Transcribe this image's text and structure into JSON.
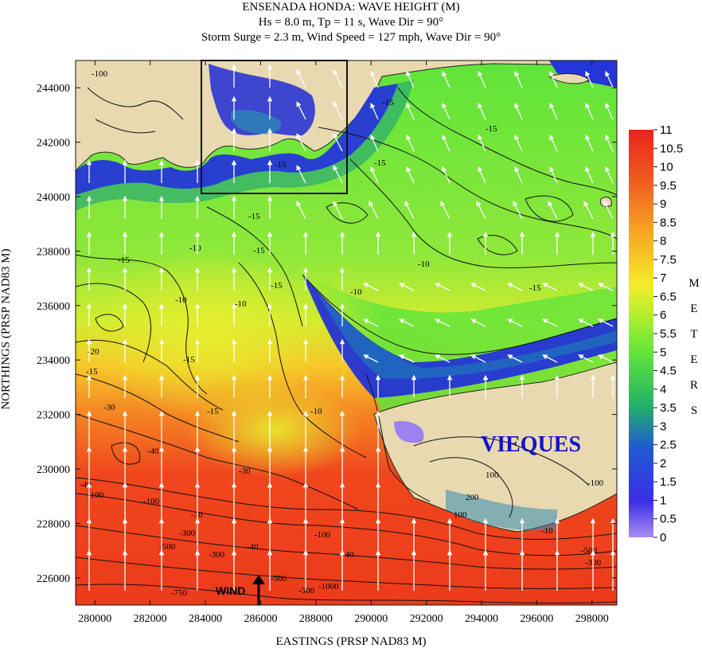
{
  "chart_data": {
    "type": "heatmap",
    "title_lines": [
      "ENSENADA HONDA: WAVE HEIGHT (M)",
      "Hs = 8.0 m, Tp = 11 s, Wave Dir = 90°",
      "Storm Surge = 2.3 m, Wind Speed = 127 mph, Wave Dir = 90°"
    ],
    "xlabel": "EASTINGS (PRSP NAD83 M)",
    "ylabel": "NORTHINGS (PRSP NAD83 M)",
    "xlim": [
      279300,
      298900
    ],
    "ylim": [
      225000,
      245000
    ],
    "x_ticks": [
      280000,
      282000,
      284000,
      286000,
      288000,
      290000,
      292000,
      294000,
      296000,
      298000
    ],
    "y_ticks": [
      226000,
      228000,
      230000,
      232000,
      234000,
      236000,
      238000,
      240000,
      242000,
      244000
    ],
    "colorbar": {
      "label": "METERS",
      "min": 0,
      "max": 11,
      "tick_labels": [
        "11",
        "10.5",
        "10",
        "9.5",
        "9",
        "8.5",
        "8",
        "7.5",
        "7",
        "6.5",
        "6",
        "5.5",
        "5",
        "4.5",
        "4",
        "3.5",
        "3",
        "2.5",
        "2",
        "1.5",
        "1",
        "0.5",
        "0"
      ]
    },
    "colors": {
      "land": "#e8d9b0",
      "high": "#f03a18",
      "mid": "#f2e62a",
      "green": "#5fe43a",
      "low": "#2431d8",
      "min": "#a07ff0"
    },
    "contour_labels": [
      "-10",
      "-15",
      "-30",
      "-40",
      "-100",
      "-300",
      "-500",
      "-750",
      "100",
      "200"
    ],
    "inset_box": {
      "x": [
        284000,
        289100
      ],
      "y": [
        240000,
        245000
      ]
    },
    "place_label": "VIEQUES",
    "wind_label": "WIND",
    "wind_direction": "north",
    "vector_direction": "north, curving westward near the north coast"
  }
}
